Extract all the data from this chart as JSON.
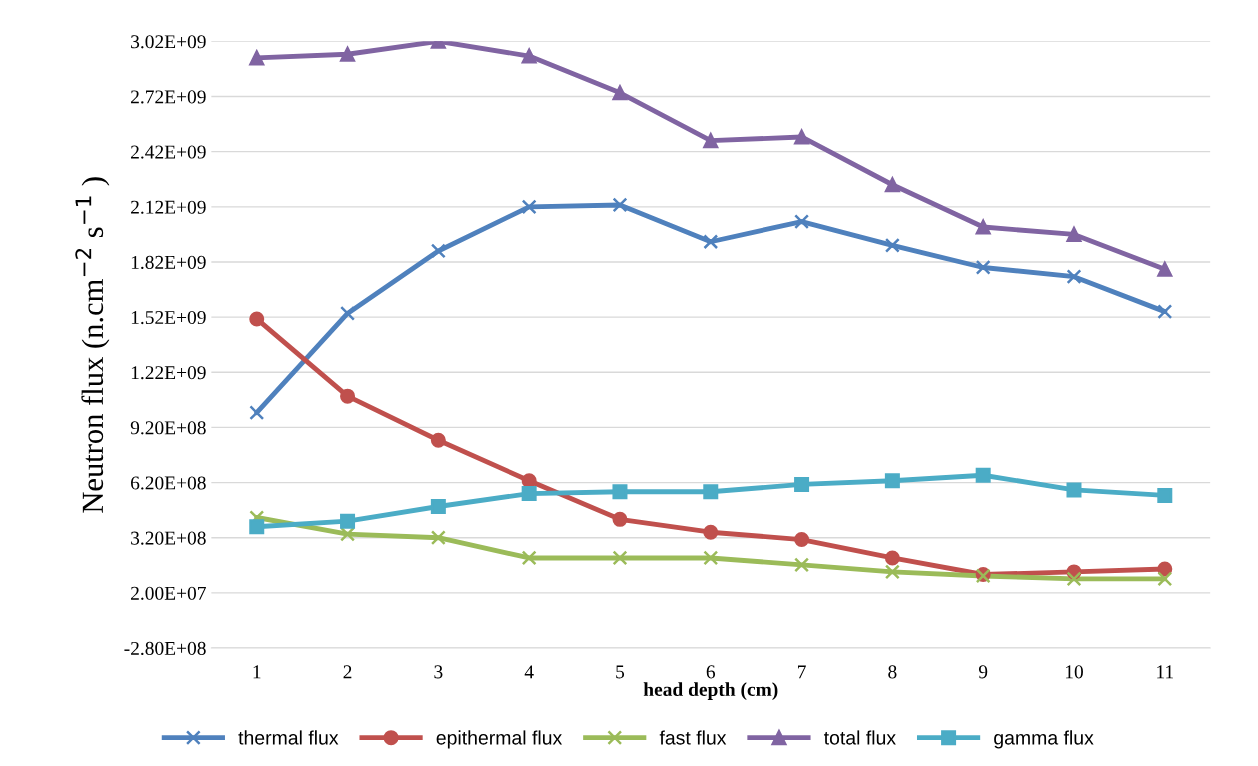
{
  "chart_data": {
    "type": "line",
    "xlabel": "head depth (cm)",
    "ylabel": "Neutron flux (n.cm$^{−2}$ s$^{−1}$ )",
    "categories": [
      "1",
      "2",
      "3",
      "4",
      "5",
      "6",
      "7",
      "8",
      "9",
      "10",
      "11"
    ],
    "series": [
      {
        "name": "thermal flux",
        "color": "#4f81bd",
        "marker": "cross",
        "values": [
          1000000000.0,
          1540000000.0,
          1880000000.0,
          2120000000.0,
          2130000000.0,
          1930000000.0,
          2040000000.0,
          1910000000.0,
          1790000000.0,
          1740000000.0,
          1550000000.0
        ]
      },
      {
        "name": "epithermal flux",
        "color": "#c0504d",
        "marker": "circle",
        "values": [
          1510000000.0,
          1090000000.0,
          850000000.0,
          630000000.0,
          420000000.0,
          350000000.0,
          310000000.0,
          210000000.0,
          120000000.0,
          134000000.0,
          150000000.0
        ]
      },
      {
        "name": "fast flux",
        "color": "#9bbb59",
        "marker": "cross",
        "values": [
          430000000.0,
          340000000.0,
          320000000.0,
          210000000.0,
          210000000.0,
          210000000.0,
          172000000.0,
          134000000.0,
          112000000.0,
          96000000.0,
          96000000.0
        ]
      },
      {
        "name": "total flux",
        "color": "#8064a2",
        "marker": "triangle",
        "values": [
          2930000000.0,
          2950000000.0,
          3020000000.0,
          2940000000.0,
          2740000000.0,
          2480000000.0,
          2500000000.0,
          2240000000.0,
          2010000000.0,
          1970000000.0,
          1780000000.0
        ]
      },
      {
        "name": "gamma flux",
        "color": "#4bacc6",
        "marker": "square",
        "values": [
          380000000.0,
          410000000.0,
          490000000.0,
          560000000.0,
          570000000.0,
          570000000.0,
          610000000.0,
          630000000.0,
          660000000.0,
          580000000.0,
          550000000.0
        ]
      }
    ],
    "ylim": [
      -280000000.0,
      3020000000.0
    ],
    "yticks": [
      {
        "value": -280000000.0,
        "label": "-2.80E+08"
      },
      {
        "value": 20000000.0,
        "label": "2.00E+07"
      },
      {
        "value": 320000000.0,
        "label": "3.20E+08"
      },
      {
        "value": 620000000.0,
        "label": "6.20E+08"
      },
      {
        "value": 920000000.0,
        "label": "9.20E+08"
      },
      {
        "value": 1220000000.0,
        "label": "1.22E+09"
      },
      {
        "value": 1520000000.0,
        "label": "1.52E+09"
      },
      {
        "value": 1820000000.0,
        "label": "1.82E+09"
      },
      {
        "value": 2120000000.0,
        "label": "2.12E+09"
      },
      {
        "value": 2420000000.0,
        "label": "2.42E+09"
      },
      {
        "value": 2720000000.0,
        "label": "2.72E+09"
      },
      {
        "value": 3020000000.0,
        "label": "3.02E+09"
      }
    ],
    "grid": "y",
    "legend": "bottom",
    "line_style": "solid"
  }
}
